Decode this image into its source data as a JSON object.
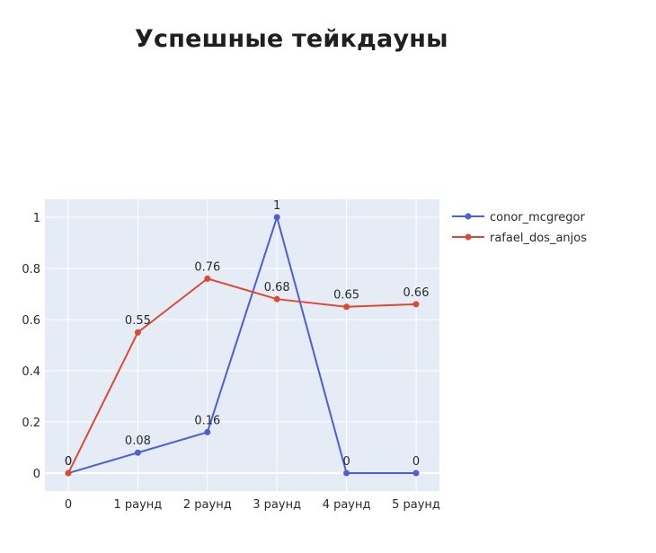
{
  "title": "Успешные тейкдауны",
  "chart_data": {
    "type": "line",
    "title": "Успешные тейкдауны",
    "categories": [
      "0",
      "1 раунд",
      "2 раунд",
      "3 раунд",
      "4 раунд",
      "5 раунд"
    ],
    "ylim": [
      -0.07,
      1.07
    ],
    "yticks": [
      "0",
      "0.2",
      "0.4",
      "0.6",
      "0.8",
      "1"
    ],
    "ytick_values": [
      0,
      0.2,
      0.4,
      0.6,
      0.8,
      1
    ],
    "grid": true,
    "legend_position": "top-right",
    "series": [
      {
        "name": "conor_mcgregor",
        "color": "#4c5fd7",
        "values": [
          0,
          0.08,
          0.16,
          1,
          0,
          0
        ],
        "labels": [
          "0",
          "0.08",
          "0.16",
          "1",
          "0",
          "0"
        ]
      },
      {
        "name": "rafael_dos_anjos",
        "color": "#dd4a33",
        "values": [
          0,
          0.55,
          0.76,
          0.68,
          0.65,
          0.66
        ],
        "labels": [
          "0",
          "0.55",
          "0.76",
          "0.68",
          "0.65",
          "0.66"
        ]
      }
    ]
  }
}
